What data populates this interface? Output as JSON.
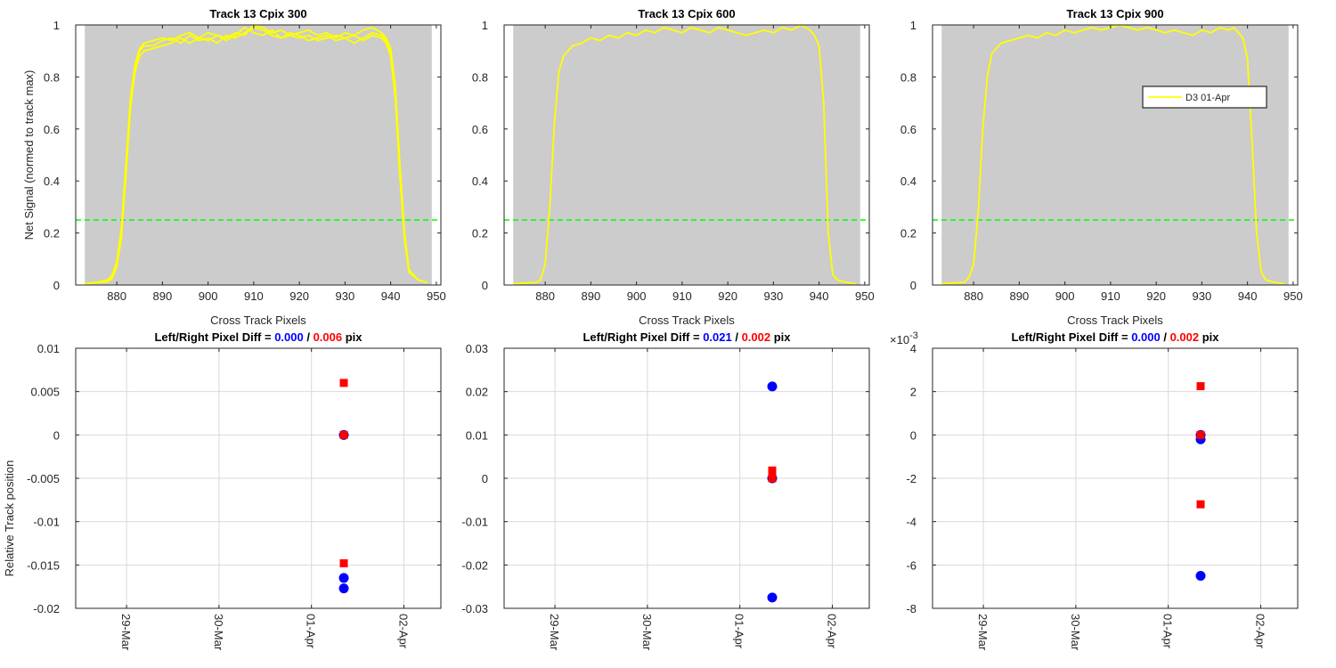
{
  "figure": {
    "colors": {
      "signal": "#ffff00",
      "threshold": "#00ff00",
      "left": "#0000ff",
      "right": "#ff0000",
      "plot_bg": "#cccccc",
      "grid": "#d9d9d9"
    },
    "left_right_label": "Left/Right Pixel Diff = ",
    "separator": " / ",
    "unit": " pix"
  },
  "chart_data": [
    {
      "type": "line",
      "title": "Track 13  Cpix 300",
      "xlabel": "Cross Track Pixels",
      "ylabel": "Net Signal (normed to track max)",
      "xlim": [
        871,
        951
      ],
      "ylim": [
        0,
        1
      ],
      "xticks": [
        880,
        890,
        900,
        910,
        920,
        930,
        940,
        950
      ],
      "yticks": [
        0,
        0.2,
        0.4,
        0.6,
        0.8,
        1
      ],
      "ytick_labels": [
        "0",
        "0.2",
        "0.4",
        "0.6",
        "0.8",
        "1"
      ],
      "shaded_x_range": [
        873,
        949
      ],
      "threshold": 0.25,
      "series": [
        {
          "x": [
            873,
            876,
            878,
            879,
            880,
            881,
            882,
            883,
            884,
            885,
            886,
            888,
            890,
            892,
            894,
            896,
            898,
            900,
            902,
            904,
            906,
            908,
            910,
            912,
            914,
            916,
            918,
            920,
            922,
            924,
            926,
            928,
            930,
            932,
            934,
            936,
            938,
            939,
            940,
            941,
            942,
            943,
            944,
            946,
            948
          ],
          "values": [
            0.005,
            0.01,
            0.015,
            0.03,
            0.08,
            0.2,
            0.45,
            0.7,
            0.84,
            0.9,
            0.92,
            0.92,
            0.94,
            0.95,
            0.93,
            0.96,
            0.94,
            0.95,
            0.93,
            0.96,
            0.95,
            0.97,
            0.99,
            0.98,
            0.96,
            0.95,
            0.97,
            0.96,
            0.94,
            0.95,
            0.96,
            0.94,
            0.95,
            0.93,
            0.95,
            0.97,
            0.96,
            0.94,
            0.9,
            0.75,
            0.45,
            0.2,
            0.05,
            0.02,
            0.01
          ]
        },
        {
          "x": [
            873,
            876,
            878,
            879,
            880,
            881,
            882,
            883,
            884,
            885,
            886,
            888,
            890,
            892,
            894,
            896,
            898,
            900,
            902,
            904,
            906,
            908,
            910,
            912,
            914,
            916,
            918,
            920,
            922,
            924,
            926,
            928,
            930,
            932,
            934,
            936,
            938,
            939,
            940,
            941,
            942,
            943,
            944,
            946,
            948
          ],
          "values": [
            0.005,
            0.01,
            0.012,
            0.025,
            0.07,
            0.18,
            0.42,
            0.68,
            0.82,
            0.88,
            0.9,
            0.91,
            0.92,
            0.93,
            0.95,
            0.93,
            0.95,
            0.94,
            0.96,
            0.94,
            0.96,
            0.99,
            0.97,
            0.96,
            0.98,
            0.95,
            0.96,
            0.95,
            0.96,
            0.94,
            0.95,
            0.96,
            0.95,
            0.96,
            0.94,
            0.96,
            0.95,
            0.93,
            0.88,
            0.72,
            0.42,
            0.18,
            0.05,
            0.02,
            0.01
          ]
        },
        {
          "x": [
            873,
            876,
            878,
            879,
            880,
            881,
            882,
            883,
            884,
            885,
            886,
            888,
            890,
            892,
            894,
            896,
            898,
            900,
            902,
            904,
            906,
            908,
            910,
            912,
            914,
            916,
            918,
            920,
            922,
            924,
            926,
            928,
            930,
            932,
            934,
            936,
            938,
            939,
            940,
            941,
            942,
            943,
            944,
            946,
            948
          ],
          "values": [
            0.005,
            0.012,
            0.02,
            0.04,
            0.09,
            0.22,
            0.47,
            0.72,
            0.85,
            0.91,
            0.93,
            0.94,
            0.95,
            0.94,
            0.96,
            0.97,
            0.95,
            0.97,
            0.96,
            0.95,
            0.97,
            0.96,
            1.0,
            0.99,
            0.97,
            0.98,
            0.96,
            0.97,
            0.98,
            0.96,
            0.97,
            0.95,
            0.97,
            0.96,
            0.98,
            0.99,
            0.97,
            0.95,
            0.91,
            0.77,
            0.47,
            0.21,
            0.06,
            0.02,
            0.01
          ]
        }
      ]
    },
    {
      "type": "line",
      "title": "Track 13  Cpix 600",
      "xlabel": "Cross Track Pixels",
      "ylabel": "",
      "xlim": [
        871,
        951
      ],
      "ylim": [
        0,
        1
      ],
      "xticks": [
        880,
        890,
        900,
        910,
        920,
        930,
        940,
        950
      ],
      "yticks": [
        0,
        0.2,
        0.4,
        0.6,
        0.8,
        1
      ],
      "ytick_labels": [
        "0",
        "0.2",
        "0.4",
        "0.6",
        "0.8",
        "1"
      ],
      "shaded_x_range": [
        873,
        949
      ],
      "threshold": 0.25,
      "series": [
        {
          "x": [
            873,
            876,
            878,
            879,
            880,
            881,
            882,
            883,
            884,
            885,
            886,
            888,
            890,
            892,
            894,
            896,
            898,
            900,
            902,
            904,
            906,
            908,
            910,
            912,
            914,
            916,
            918,
            920,
            922,
            924,
            926,
            928,
            930,
            932,
            934,
            936,
            937,
            938,
            939,
            940,
            941,
            942,
            943,
            944,
            946,
            948
          ],
          "values": [
            0.005,
            0.008,
            0.01,
            0.02,
            0.08,
            0.3,
            0.62,
            0.82,
            0.88,
            0.9,
            0.92,
            0.93,
            0.95,
            0.94,
            0.96,
            0.95,
            0.97,
            0.96,
            0.98,
            0.97,
            0.99,
            0.98,
            0.97,
            0.99,
            0.98,
            0.97,
            0.99,
            0.98,
            0.97,
            0.96,
            0.97,
            0.98,
            0.97,
            0.99,
            0.98,
            1.0,
            0.99,
            0.98,
            0.96,
            0.92,
            0.7,
            0.2,
            0.04,
            0.02,
            0.01,
            0.005
          ]
        }
      ]
    },
    {
      "type": "line",
      "title": "Track 13  Cpix 900",
      "xlabel": "Cross Track Pixels",
      "ylabel": "",
      "xlim": [
        871,
        951
      ],
      "ylim": [
        0,
        1
      ],
      "xticks": [
        880,
        890,
        900,
        910,
        920,
        930,
        940,
        950
      ],
      "yticks": [
        0,
        0.2,
        0.4,
        0.6,
        0.8,
        1
      ],
      "ytick_labels": [
        "0",
        "0.2",
        "0.4",
        "0.6",
        "0.8",
        "1"
      ],
      "shaded_x_range": [
        873,
        949
      ],
      "threshold": 0.25,
      "legend": {
        "entries": [
          "D3 01-Apr"
        ],
        "placement": "right"
      },
      "series": [
        {
          "name": "D3 01-Apr",
          "x": [
            873,
            876,
            878,
            879,
            880,
            881,
            882,
            883,
            884,
            885,
            886,
            888,
            890,
            892,
            894,
            896,
            898,
            900,
            902,
            904,
            906,
            908,
            910,
            912,
            914,
            916,
            918,
            920,
            922,
            924,
            926,
            928,
            930,
            932,
            934,
            936,
            937,
            938,
            939,
            940,
            941,
            942,
            943,
            944,
            946,
            948
          ],
          "values": [
            0.005,
            0.008,
            0.01,
            0.03,
            0.08,
            0.28,
            0.6,
            0.8,
            0.89,
            0.91,
            0.93,
            0.94,
            0.95,
            0.96,
            0.95,
            0.97,
            0.96,
            0.98,
            0.97,
            0.98,
            0.99,
            0.98,
            0.99,
            1.0,
            0.99,
            0.98,
            0.99,
            0.98,
            0.97,
            0.98,
            0.97,
            0.96,
            0.98,
            0.97,
            0.99,
            0.98,
            0.99,
            0.97,
            0.95,
            0.87,
            0.55,
            0.2,
            0.05,
            0.02,
            0.01,
            0.005
          ]
        }
      ]
    },
    {
      "type": "scatter",
      "title": "",
      "left_value": "0.000",
      "right_value": "0.006",
      "xlabel": "",
      "ylabel": "Relative Track position",
      "xlim": [
        -0.55,
        3.4
      ],
      "ylim": [
        -0.02,
        0.01
      ],
      "yticks": [
        -0.02,
        -0.015,
        -0.01,
        -0.005,
        0,
        0.005,
        0.01
      ],
      "ytick_labels": [
        "-0.02",
        "-0.015",
        "-0.01",
        "-0.005",
        "0",
        "0.005",
        "0.01"
      ],
      "xtick_values": [
        0,
        1,
        2,
        3
      ],
      "xtick_labels": [
        "29-Mar",
        "30-Mar",
        "01-Apr",
        "02-Apr"
      ],
      "exponent_label": "",
      "series": [
        {
          "name": "Left",
          "marker": "circle",
          "x": [
            2.35,
            2.35,
            2.35
          ],
          "values": [
            0,
            -0.0165,
            -0.0177
          ]
        },
        {
          "name": "Right",
          "marker": "square",
          "x": [
            2.35,
            2.35,
            2.35
          ],
          "values": [
            0.006,
            0,
            -0.0148
          ]
        }
      ]
    },
    {
      "type": "scatter",
      "title": "",
      "left_value": "0.021",
      "right_value": "0.002",
      "xlabel": "",
      "ylabel": "",
      "xlim": [
        -0.55,
        3.4
      ],
      "ylim": [
        -0.03,
        0.03
      ],
      "yticks": [
        -0.03,
        -0.02,
        -0.01,
        0,
        0.01,
        0.02,
        0.03
      ],
      "ytick_labels": [
        "-0.03",
        "-0.02",
        "-0.01",
        "0",
        "0.01",
        "0.02",
        "0.03"
      ],
      "xtick_values": [
        0,
        1,
        2,
        3
      ],
      "xtick_labels": [
        "29-Mar",
        "30-Mar",
        "01-Apr",
        "02-Apr"
      ],
      "exponent_label": "",
      "series": [
        {
          "name": "Left",
          "marker": "circle",
          "x": [
            2.35,
            2.35,
            2.35
          ],
          "values": [
            0.0212,
            0,
            -0.0275
          ]
        },
        {
          "name": "Right",
          "marker": "square",
          "x": [
            2.35,
            2.35,
            2.35
          ],
          "values": [
            0.0018,
            0,
            0
          ]
        }
      ]
    },
    {
      "type": "scatter",
      "title": "",
      "left_value": "0.000",
      "right_value": "0.002",
      "xlabel": "",
      "ylabel": "",
      "xlim": [
        -0.55,
        3.4
      ],
      "ylim": [
        -8,
        4
      ],
      "yticks": [
        -8,
        -6,
        -4,
        -2,
        0,
        2,
        4
      ],
      "ytick_labels": [
        "-8",
        "-6",
        "-4",
        "-2",
        "0",
        "2",
        "4"
      ],
      "xtick_values": [
        0,
        1,
        2,
        3
      ],
      "xtick_labels": [
        "29-Mar",
        "30-Mar",
        "01-Apr",
        "02-Apr"
      ],
      "exponent_label": "×10",
      "exponent_power": "-3",
      "series": [
        {
          "name": "Left",
          "marker": "circle",
          "x": [
            2.35,
            2.35,
            2.35
          ],
          "values": [
            0,
            -0.2,
            -6.5
          ]
        },
        {
          "name": "Right",
          "marker": "square",
          "x": [
            2.35,
            2.35,
            2.35
          ],
          "values": [
            2.25,
            0,
            -3.2
          ]
        }
      ]
    }
  ]
}
